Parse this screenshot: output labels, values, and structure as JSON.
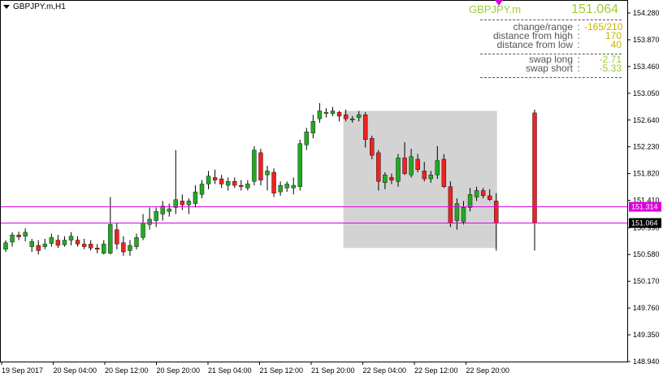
{
  "window": {
    "title": "GBPJPY.m,H1"
  },
  "info_panel": {
    "symbol": "GBPJPY.m",
    "price": "151.064",
    "rows": [
      {
        "label": "change/range",
        "value": "-165/210"
      },
      {
        "label": "distance from high",
        "value": "170"
      },
      {
        "label": "distance from low",
        "value": "40"
      },
      {
        "label": "swap long",
        "value": "-2.71"
      },
      {
        "label": "swap short",
        "value": "-5.33"
      }
    ],
    "separator": ":"
  },
  "colors": {
    "bull": "#22aa22",
    "bear": "#ee2222",
    "wick": "#000000",
    "hline": "#dd00dd",
    "range_box": "#d3d3d3",
    "info_text": "#9acd32"
  },
  "chart_data": {
    "type": "candlestick",
    "ylim": [
      148.94,
      154.4
    ],
    "y_ticks": [
      "154.280",
      "153.870",
      "153.460",
      "153.050",
      "152.640",
      "152.230",
      "151.820",
      "151.410",
      "150.990",
      "150.580",
      "150.170",
      "149.760",
      "149.350",
      "148.940"
    ],
    "x_ticks": [
      "19 Sep 2017",
      "20 Sep 04:00",
      "20 Sep 12:00",
      "20 Sep 20:00",
      "21 Sep 04:00",
      "21 Sep 12:00",
      "21 Sep 20:00",
      "22 Sep 04:00",
      "22 Sep 12:00",
      "22 Sep 20:00"
    ],
    "price_lines": [
      {
        "value": 151.314,
        "label": "151.314"
      },
      {
        "value": 151.064,
        "label": "151.064"
      }
    ],
    "range_box": {
      "x_from_index": 52,
      "x_to_index": 75,
      "high": 152.78,
      "low": 150.68
    },
    "candles": [
      [
        150.66,
        150.8,
        150.62,
        150.76
      ],
      [
        150.77,
        150.92,
        150.7,
        150.88
      ],
      [
        150.88,
        150.93,
        150.8,
        150.85
      ],
      [
        150.86,
        150.98,
        150.78,
        150.92
      ],
      [
        150.7,
        150.82,
        150.62,
        150.78
      ],
      [
        150.72,
        150.8,
        150.58,
        150.64
      ],
      [
        150.7,
        150.82,
        150.66,
        150.74
      ],
      [
        150.75,
        150.9,
        150.7,
        150.84
      ],
      [
        150.8,
        150.88,
        150.68,
        150.72
      ],
      [
        150.73,
        150.86,
        150.7,
        150.8
      ],
      [
        150.8,
        150.92,
        150.72,
        150.86
      ],
      [
        150.8,
        150.86,
        150.7,
        150.74
      ],
      [
        150.74,
        150.82,
        150.66,
        150.7
      ],
      [
        150.74,
        150.8,
        150.64,
        150.68
      ],
      [
        150.68,
        150.74,
        150.6,
        150.66
      ],
      [
        150.6,
        150.8,
        150.58,
        150.74
      ],
      [
        150.6,
        151.46,
        150.58,
        151.04
      ],
      [
        150.96,
        151.06,
        150.66,
        150.74
      ],
      [
        150.76,
        150.86,
        150.56,
        150.62
      ],
      [
        150.64,
        150.8,
        150.56,
        150.72
      ],
      [
        150.7,
        150.9,
        150.66,
        150.84
      ],
      [
        150.84,
        151.2,
        150.8,
        151.06
      ],
      [
        151.04,
        151.3,
        150.96,
        151.12
      ],
      [
        151.1,
        151.3,
        151.0,
        151.24
      ],
      [
        151.2,
        151.4,
        151.1,
        151.32
      ],
      [
        151.24,
        151.36,
        151.16,
        151.28
      ],
      [
        151.3,
        152.18,
        151.2,
        151.42
      ],
      [
        151.4,
        151.5,
        151.26,
        151.34
      ],
      [
        151.34,
        151.44,
        151.2,
        151.4
      ],
      [
        151.36,
        151.64,
        151.3,
        151.54
      ],
      [
        151.5,
        151.72,
        151.44,
        151.66
      ],
      [
        151.66,
        151.86,
        151.58,
        151.78
      ],
      [
        151.76,
        151.88,
        151.66,
        151.72
      ],
      [
        151.74,
        151.8,
        151.6,
        151.66
      ],
      [
        151.64,
        151.76,
        151.56,
        151.7
      ],
      [
        151.7,
        151.76,
        151.6,
        151.64
      ],
      [
        151.64,
        151.72,
        151.56,
        151.62
      ],
      [
        151.6,
        151.72,
        151.56,
        151.66
      ],
      [
        151.7,
        152.24,
        151.64,
        152.18
      ],
      [
        152.14,
        152.2,
        151.64,
        151.72
      ],
      [
        151.8,
        151.94,
        151.56,
        151.86
      ],
      [
        151.84,
        151.9,
        151.46,
        151.52
      ],
      [
        151.54,
        151.7,
        151.48,
        151.64
      ],
      [
        151.6,
        151.7,
        151.54,
        151.66
      ],
      [
        151.6,
        151.76,
        151.5,
        151.64
      ],
      [
        151.62,
        152.34,
        151.56,
        152.28
      ],
      [
        152.26,
        152.52,
        152.18,
        152.46
      ],
      [
        152.44,
        152.72,
        152.36,
        152.62
      ],
      [
        152.66,
        152.9,
        152.6,
        152.78
      ],
      [
        152.74,
        152.82,
        152.68,
        152.76
      ],
      [
        152.74,
        152.84,
        152.7,
        152.78
      ],
      [
        152.76,
        152.78,
        152.62,
        152.7
      ],
      [
        152.72,
        152.8,
        152.62,
        152.66
      ],
      [
        152.64,
        152.7,
        152.6,
        152.66
      ],
      [
        152.68,
        152.78,
        152.62,
        152.72
      ],
      [
        152.72,
        152.76,
        152.22,
        152.34
      ],
      [
        152.36,
        152.4,
        152.04,
        152.1
      ],
      [
        152.14,
        152.18,
        151.56,
        151.7
      ],
      [
        151.68,
        151.84,
        151.58,
        151.8
      ],
      [
        151.76,
        151.82,
        151.66,
        151.72
      ],
      [
        151.7,
        152.12,
        151.62,
        152.06
      ],
      [
        152.06,
        152.3,
        151.8,
        151.82
      ],
      [
        151.8,
        152.2,
        151.76,
        152.08
      ],
      [
        152.04,
        152.12,
        151.84,
        151.88
      ],
      [
        151.86,
        152.0,
        151.7,
        151.74
      ],
      [
        151.74,
        151.86,
        151.68,
        151.8
      ],
      [
        151.8,
        152.24,
        151.74,
        152.02
      ],
      [
        152.04,
        152.12,
        151.6,
        151.62
      ],
      [
        151.62,
        151.7,
        151.0,
        151.06
      ],
      [
        151.1,
        151.44,
        150.96,
        151.36
      ],
      [
        151.08,
        151.4,
        151.04,
        151.3
      ],
      [
        151.3,
        151.6,
        151.24,
        151.5
      ],
      [
        151.46,
        151.62,
        151.4,
        151.56
      ],
      [
        151.56,
        151.6,
        151.44,
        151.48
      ],
      [
        151.48,
        151.58,
        151.4,
        151.42
      ],
      [
        151.4,
        151.52,
        150.64,
        151.064
      ],
      [
        152.75,
        152.8,
        150.64,
        151.064
      ]
    ]
  }
}
